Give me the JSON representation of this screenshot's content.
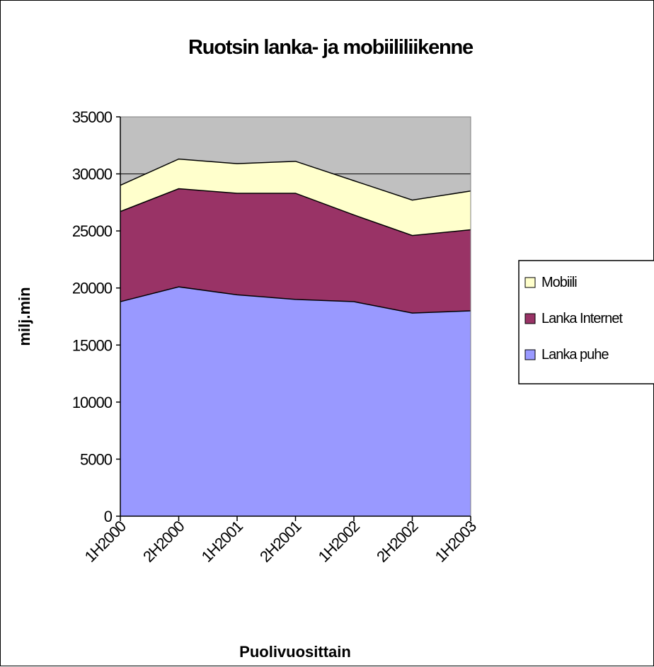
{
  "chart_data": {
    "type": "area",
    "stacked": true,
    "title": "Ruotsin lanka- ja mobiililiikenne",
    "xlabel": "Puolivuosittain",
    "ylabel": "milj.min",
    "categories": [
      "1H2000",
      "2H2000",
      "1H2001",
      "2H2001",
      "1H2002",
      "2H2002",
      "1H2003"
    ],
    "y_ticks": [
      "0",
      "5000",
      "10000",
      "15000",
      "20000",
      "25000",
      "30000",
      "35000"
    ],
    "ylim": [
      0,
      35000
    ],
    "grid": "horizontal gridlines",
    "legend_position": "right",
    "plot_background": "#c0c0c0",
    "series": [
      {
        "name": "Lanka puhe",
        "color": "#9999ff",
        "values": [
          18800,
          20100,
          19400,
          19000,
          18800,
          17800,
          18000
        ]
      },
      {
        "name": "Lanka Internet",
        "color": "#993366",
        "values": [
          7900,
          8600,
          8900,
          9300,
          7600,
          6800,
          7100
        ]
      },
      {
        "name": "Mobiili",
        "color": "#ffffcc",
        "values": [
          2300,
          2600,
          2600,
          2800,
          3000,
          3100,
          3400
        ]
      }
    ],
    "legend_order": [
      "Mobiili",
      "Lanka Internet",
      "Lanka puhe"
    ]
  }
}
